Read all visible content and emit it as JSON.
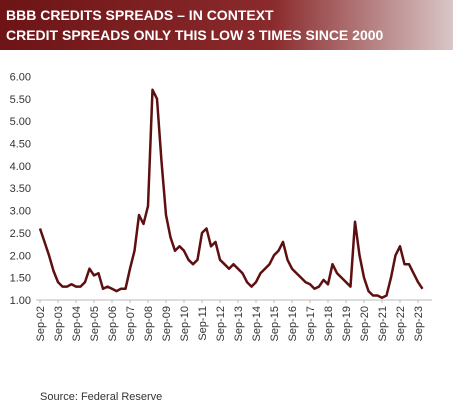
{
  "chart_data": {
    "type": "line",
    "title": "BBB CREDITS SPREADS – IN CONTEXT",
    "subtitle": "CREDIT SPREADS ONLY THIS LOW 3 TIMES SINCE 2000",
    "source": "Source:  Federal Reserve",
    "categories": [
      "Sep-02",
      null,
      null,
      null,
      "Sep-03",
      null,
      null,
      null,
      "Sep-04",
      null,
      null,
      null,
      "Sep-05",
      null,
      null,
      null,
      "Sep-06",
      null,
      null,
      null,
      "Sep-07",
      null,
      null,
      null,
      "Sep-08",
      null,
      null,
      null,
      "Sep-09",
      null,
      null,
      null,
      "Sep-10",
      null,
      null,
      null,
      "Sep-11",
      null,
      null,
      null,
      "Sep-12",
      null,
      null,
      null,
      "Sep-13",
      null,
      null,
      null,
      "Sep-14",
      null,
      null,
      null,
      "Sep-15",
      null,
      null,
      null,
      "Sep-16",
      null,
      null,
      null,
      "Sep-17",
      null,
      null,
      null,
      "Sep-18",
      null,
      null,
      null,
      "Sep-19",
      null,
      null,
      null,
      "Sep-20",
      null,
      null,
      null,
      "Sep-21",
      null,
      null,
      null,
      "Sep-22",
      null,
      null,
      null,
      "Sep-23",
      null
    ],
    "values": [
      2.6,
      2.3,
      2.0,
      1.65,
      1.4,
      1.3,
      1.3,
      1.35,
      1.3,
      1.3,
      1.4,
      1.7,
      1.55,
      1.6,
      1.25,
      1.3,
      1.25,
      1.2,
      1.25,
      1.25,
      1.7,
      2.1,
      2.9,
      2.7,
      3.1,
      5.7,
      5.5,
      4.1,
      2.9,
      2.4,
      2.1,
      2.2,
      2.1,
      1.9,
      1.8,
      1.9,
      2.5,
      2.6,
      2.2,
      2.3,
      1.9,
      1.8,
      1.7,
      1.8,
      1.7,
      1.6,
      1.4,
      1.3,
      1.4,
      1.6,
      1.7,
      1.8,
      2.0,
      2.1,
      2.3,
      1.9,
      1.7,
      1.6,
      1.5,
      1.4,
      1.35,
      1.25,
      1.3,
      1.45,
      1.35,
      1.8,
      1.6,
      1.5,
      1.4,
      1.3,
      2.75,
      2.0,
      1.5,
      1.2,
      1.1,
      1.1,
      1.05,
      1.1,
      1.5,
      2.0,
      2.2,
      1.8,
      1.8,
      1.6,
      1.4,
      1.25
    ],
    "color": "#5e0f10",
    "ylim": [
      1,
      6.3
    ],
    "yticks": [
      {
        "value": 1,
        "label": "1.00"
      },
      {
        "value": 1.5,
        "label": "1.50"
      },
      {
        "value": 2,
        "label": "2.00"
      },
      {
        "value": 2.5,
        "label": "2.50"
      },
      {
        "value": 3,
        "label": "3.00"
      },
      {
        "value": 3.5,
        "label": "3.50"
      },
      {
        "value": 4,
        "label": "4.00"
      },
      {
        "value": 4.5,
        "label": "4.50"
      },
      {
        "value": 5,
        "label": "5.00"
      },
      {
        "value": 5.5,
        "label": "5.50"
      },
      {
        "value": 6,
        "label": "6.00"
      }
    ],
    "grid": false
  }
}
